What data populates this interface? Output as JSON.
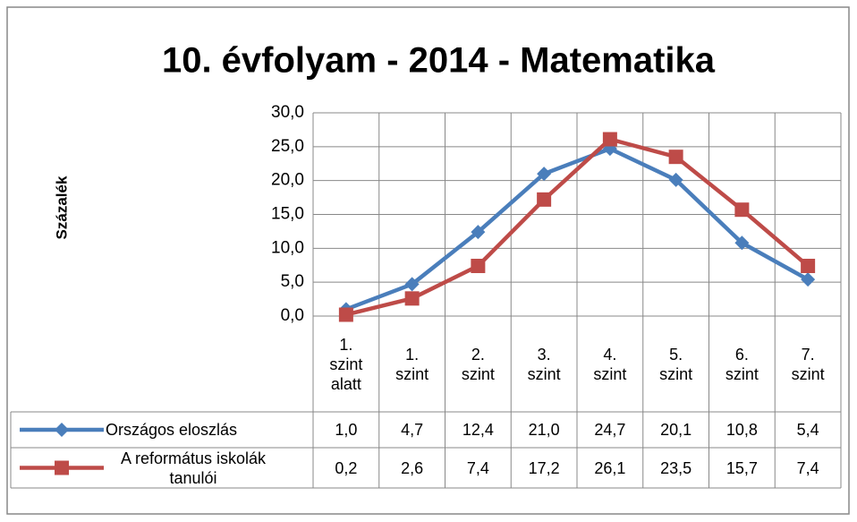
{
  "chart_data": {
    "type": "line",
    "title": "10. évfolyam - 2014 - Matematika",
    "y_label": "Százalék",
    "categories": [
      "1. szint alatt",
      "1. szint",
      "2. szint",
      "3. szint",
      "4. szint",
      "5. szint",
      "6. szint",
      "7. szint"
    ],
    "series": [
      {
        "name": "Országos eloszlás",
        "color": "#4a7ebb",
        "marker": "diamond",
        "values": [
          1.0,
          4.7,
          12.4,
          21.0,
          24.7,
          20.1,
          10.8,
          5.4
        ],
        "value_labels": [
          "1,0",
          "4,7",
          "12,4",
          "21,0",
          "24,7",
          "20,1",
          "10,8",
          "5,4"
        ]
      },
      {
        "name": "A református iskolák tanulói",
        "color": "#be4b48",
        "marker": "square",
        "values": [
          0.2,
          2.6,
          7.4,
          17.2,
          26.1,
          23.5,
          15.7,
          7.4
        ],
        "value_labels": [
          "0,2",
          "2,6",
          "7,4",
          "17,2",
          "26,1",
          "23,5",
          "15,7",
          "7,4"
        ]
      }
    ],
    "ylim": [
      0,
      30
    ],
    "yticks": [
      {
        "value": 0,
        "label": "0,0"
      },
      {
        "value": 5,
        "label": "5,0"
      },
      {
        "value": 10,
        "label": "10,0"
      },
      {
        "value": 15,
        "label": "15,0"
      },
      {
        "value": 20,
        "label": "20,0"
      },
      {
        "value": 25,
        "label": "25,0"
      },
      {
        "value": 30,
        "label": "30,0"
      }
    ],
    "grid": true
  }
}
